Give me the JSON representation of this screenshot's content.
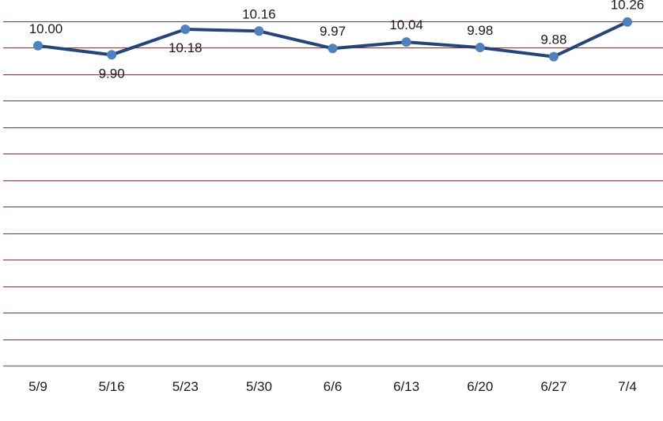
{
  "chart_data": {
    "type": "line",
    "title": "",
    "xlabel": "",
    "ylabel": "",
    "categories": [
      "5/9",
      "5/16",
      "5/23",
      "5/30",
      "6/6",
      "6/13",
      "6/20",
      "6/27",
      "7/4"
    ],
    "series": [
      {
        "values": [
          10.0,
          9.9,
          10.18,
          10.16,
          9.97,
          10.04,
          9.98,
          9.88,
          10.26
        ],
        "data_labels": [
          "10.00",
          "9.90",
          "10.18",
          "10.16",
          "9.97",
          "10.04",
          "9.98",
          "9.88",
          "10.26"
        ],
        "label_positions": [
          "above",
          "below",
          "below",
          "above",
          "above",
          "above",
          "above",
          "above",
          "above"
        ],
        "color": "#264478",
        "marker_color": "#4F81BD"
      }
    ],
    "ylim": [
      6.5,
      10.5
    ],
    "y_step": 0.29,
    "grid": true,
    "gridline_color": "#8B2E2E",
    "axis_color": "#808080",
    "legend": "none"
  }
}
